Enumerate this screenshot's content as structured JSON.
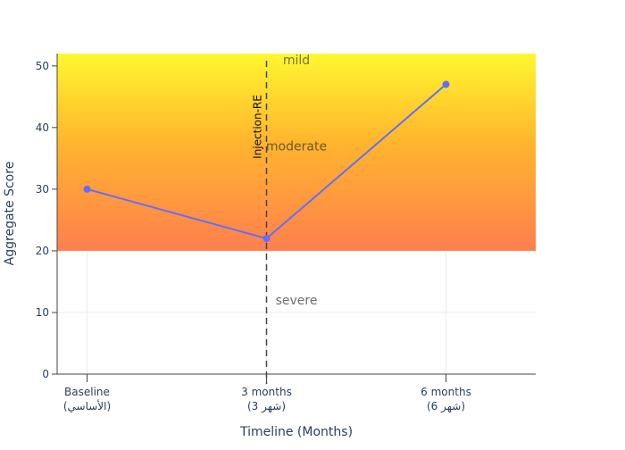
{
  "chart_data": {
    "type": "line",
    "xlabel": "Timeline (Months)",
    "ylabel": "Aggregate Score",
    "x": [
      0,
      3,
      6
    ],
    "x_tick_labels": [
      {
        "line1": "Baseline",
        "line2": "(الأساسي)"
      },
      {
        "line1": "3 months",
        "line2": "(شهر 3)"
      },
      {
        "line1": "6 months",
        "line2": "(شهر 6)"
      }
    ],
    "xlim": [
      -0.5,
      7.5
    ],
    "y_ticks": [
      0,
      10,
      20,
      30,
      40,
      50
    ],
    "ylim": [
      0,
      52
    ],
    "series": [
      {
        "values": [
          30,
          22,
          47
        ],
        "color": "#636efa"
      }
    ],
    "bands": [
      {
        "label": "severe",
        "from": 0,
        "to": 20,
        "label_y": 12,
        "colors": []
      },
      {
        "label": "moderate",
        "from": 20,
        "to": 52,
        "label_y": 37,
        "colors": [
          "#ff7f4e",
          "#ffb52e",
          "#fff72f"
        ]
      },
      {
        "label": "mild",
        "from": 52,
        "to": 52,
        "label_y": 51,
        "colors": []
      }
    ],
    "vline": {
      "x": 3,
      "label": "Injection-RE"
    },
    "grid": true,
    "legend": "none"
  }
}
